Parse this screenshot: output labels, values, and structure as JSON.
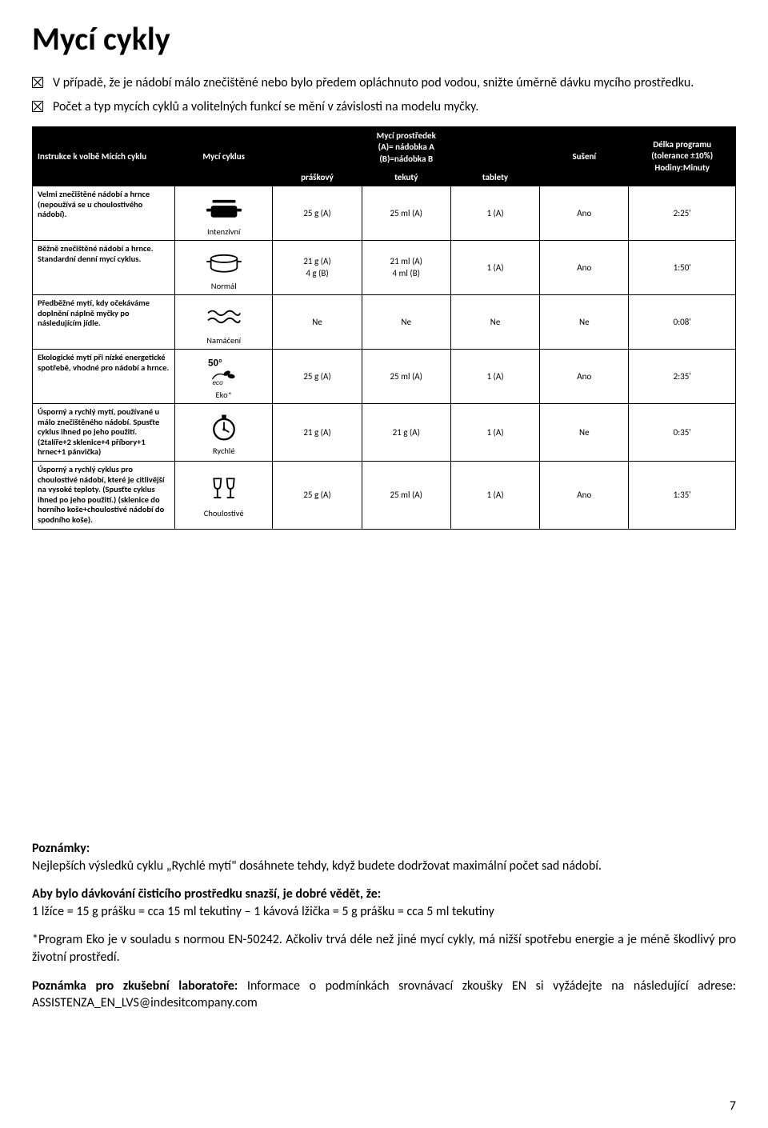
{
  "page": {
    "title": "Mycí cykly",
    "intro": [
      "V případě, že je nádobí málo znečištěné nebo bylo předem opláchnuto pod vodou, snižte úměrně dávku mycího prostředku.",
      "Počet a typ mycích cyklů a volitelných funkcí se mění v závislosti na modelu myčky."
    ]
  },
  "table": {
    "headers": {
      "instruction": "Instrukce k volbě Mících cyklu",
      "cycle": "Mycí cyklus",
      "detergent_group": "Mycí prostředek\n(A)= nádobka A\n(B)=nádobka B",
      "powder": "práškový",
      "liquid": "tekutý",
      "tablets": "tablety",
      "drying": "Sušení",
      "duration": "Délka programu\n(tolerance ±10%)\nHodiny:Minuty"
    },
    "rows": [
      {
        "instruction": "Velmi znečištěné nádobí a hrnce (nepoužívá se u choulostivého nádobí).",
        "cycle_label": "Intenzivní",
        "icon": "intensive",
        "powder": "25 g (A)",
        "liquid": "25 ml (A)",
        "tablets": "1 (A)",
        "drying": "Ano",
        "duration": "2:25'"
      },
      {
        "instruction": "Běžně znečištěné nádobí a hrnce. Standardní denní mycí cyklus.",
        "cycle_label": "Normál",
        "icon": "normal",
        "powder": "21 g (A)\n4 g (B)",
        "liquid": "21 ml (A)\n4 ml (B)",
        "tablets": "1 (A)",
        "drying": "Ano",
        "duration": "1:50'"
      },
      {
        "instruction": "Předběžné mytí, kdy očekáváme doplnění náplně myčky po následujícím jídle.",
        "cycle_label": "Namáčení",
        "icon": "soak",
        "powder": "Ne",
        "liquid": "Ne",
        "tablets": "Ne",
        "drying": "Ne",
        "duration": "0:08'"
      },
      {
        "instruction": "Ekologické mytí při nízké energetické spotřebě, vhodné pro nádobí a hrnce.",
        "cycle_label": "Eko*",
        "icon": "eco",
        "powder": "25 g (A)",
        "liquid": "25 ml (A)",
        "tablets": "1 (A)",
        "drying": "Ano",
        "duration": "2:35'"
      },
      {
        "instruction": "Úsporný a rychlý mytí, používané u málo znečištěného nádobí. Spusťte cyklus ihned po jeho použití.(2talíře+2 sklenice+4 příbory+1 hrnec+1 pánvička)",
        "cycle_label": "Rychlé",
        "icon": "quick",
        "powder": "21 g (A)",
        "liquid": "21 g (A)",
        "tablets": "1 (A)",
        "drying": "Ne",
        "duration": "0:35'"
      },
      {
        "instruction": "Úsporný a rychlý cyklus pro choulostivé nádobí, které je citlivější na vysoké teploty. (Spusťte cyklus ihned po jeho použití.) (sklenice do horního koše+choulostivé nádobí do spodního koše).",
        "cycle_label": "Choulostivé",
        "icon": "delicate",
        "powder": "25 g (A)",
        "liquid": "25 ml (A)",
        "tablets": "1 (A)",
        "drying": "Ano",
        "duration": "1:35'"
      }
    ]
  },
  "notes": {
    "heading": "Poznámky:",
    "line1": "Nejlepších výsledků cyklu „Rychlé mytí\" dosáhnete tehdy, když budete dodržovat maximální počet sad nádobí.",
    "bold2": "Aby bylo dávkování čisticího prostředku snazší, je dobré vědět, že:",
    "line2": "1 lžíce = 15 g prášku = cca 15 ml tekutiny – 1 kávová lžička = 5 g prášku = cca 5 ml tekutiny",
    "line3": "*Program Eko je v souladu s normou EN-50242. Ačkoliv trvá déle než jiné mycí cykly, má nižší spotřebu energie a je méně škodlivý pro životní prostředí.",
    "bold4": "Poznámka pro zkušební laboratoře:",
    "line4": " Informace o podmínkách srovnávací zkoušky EN si vyžádejte na následující adrese: ASSISTENZA_EN_LVS@indesitcompany.com"
  },
  "page_number": "7"
}
